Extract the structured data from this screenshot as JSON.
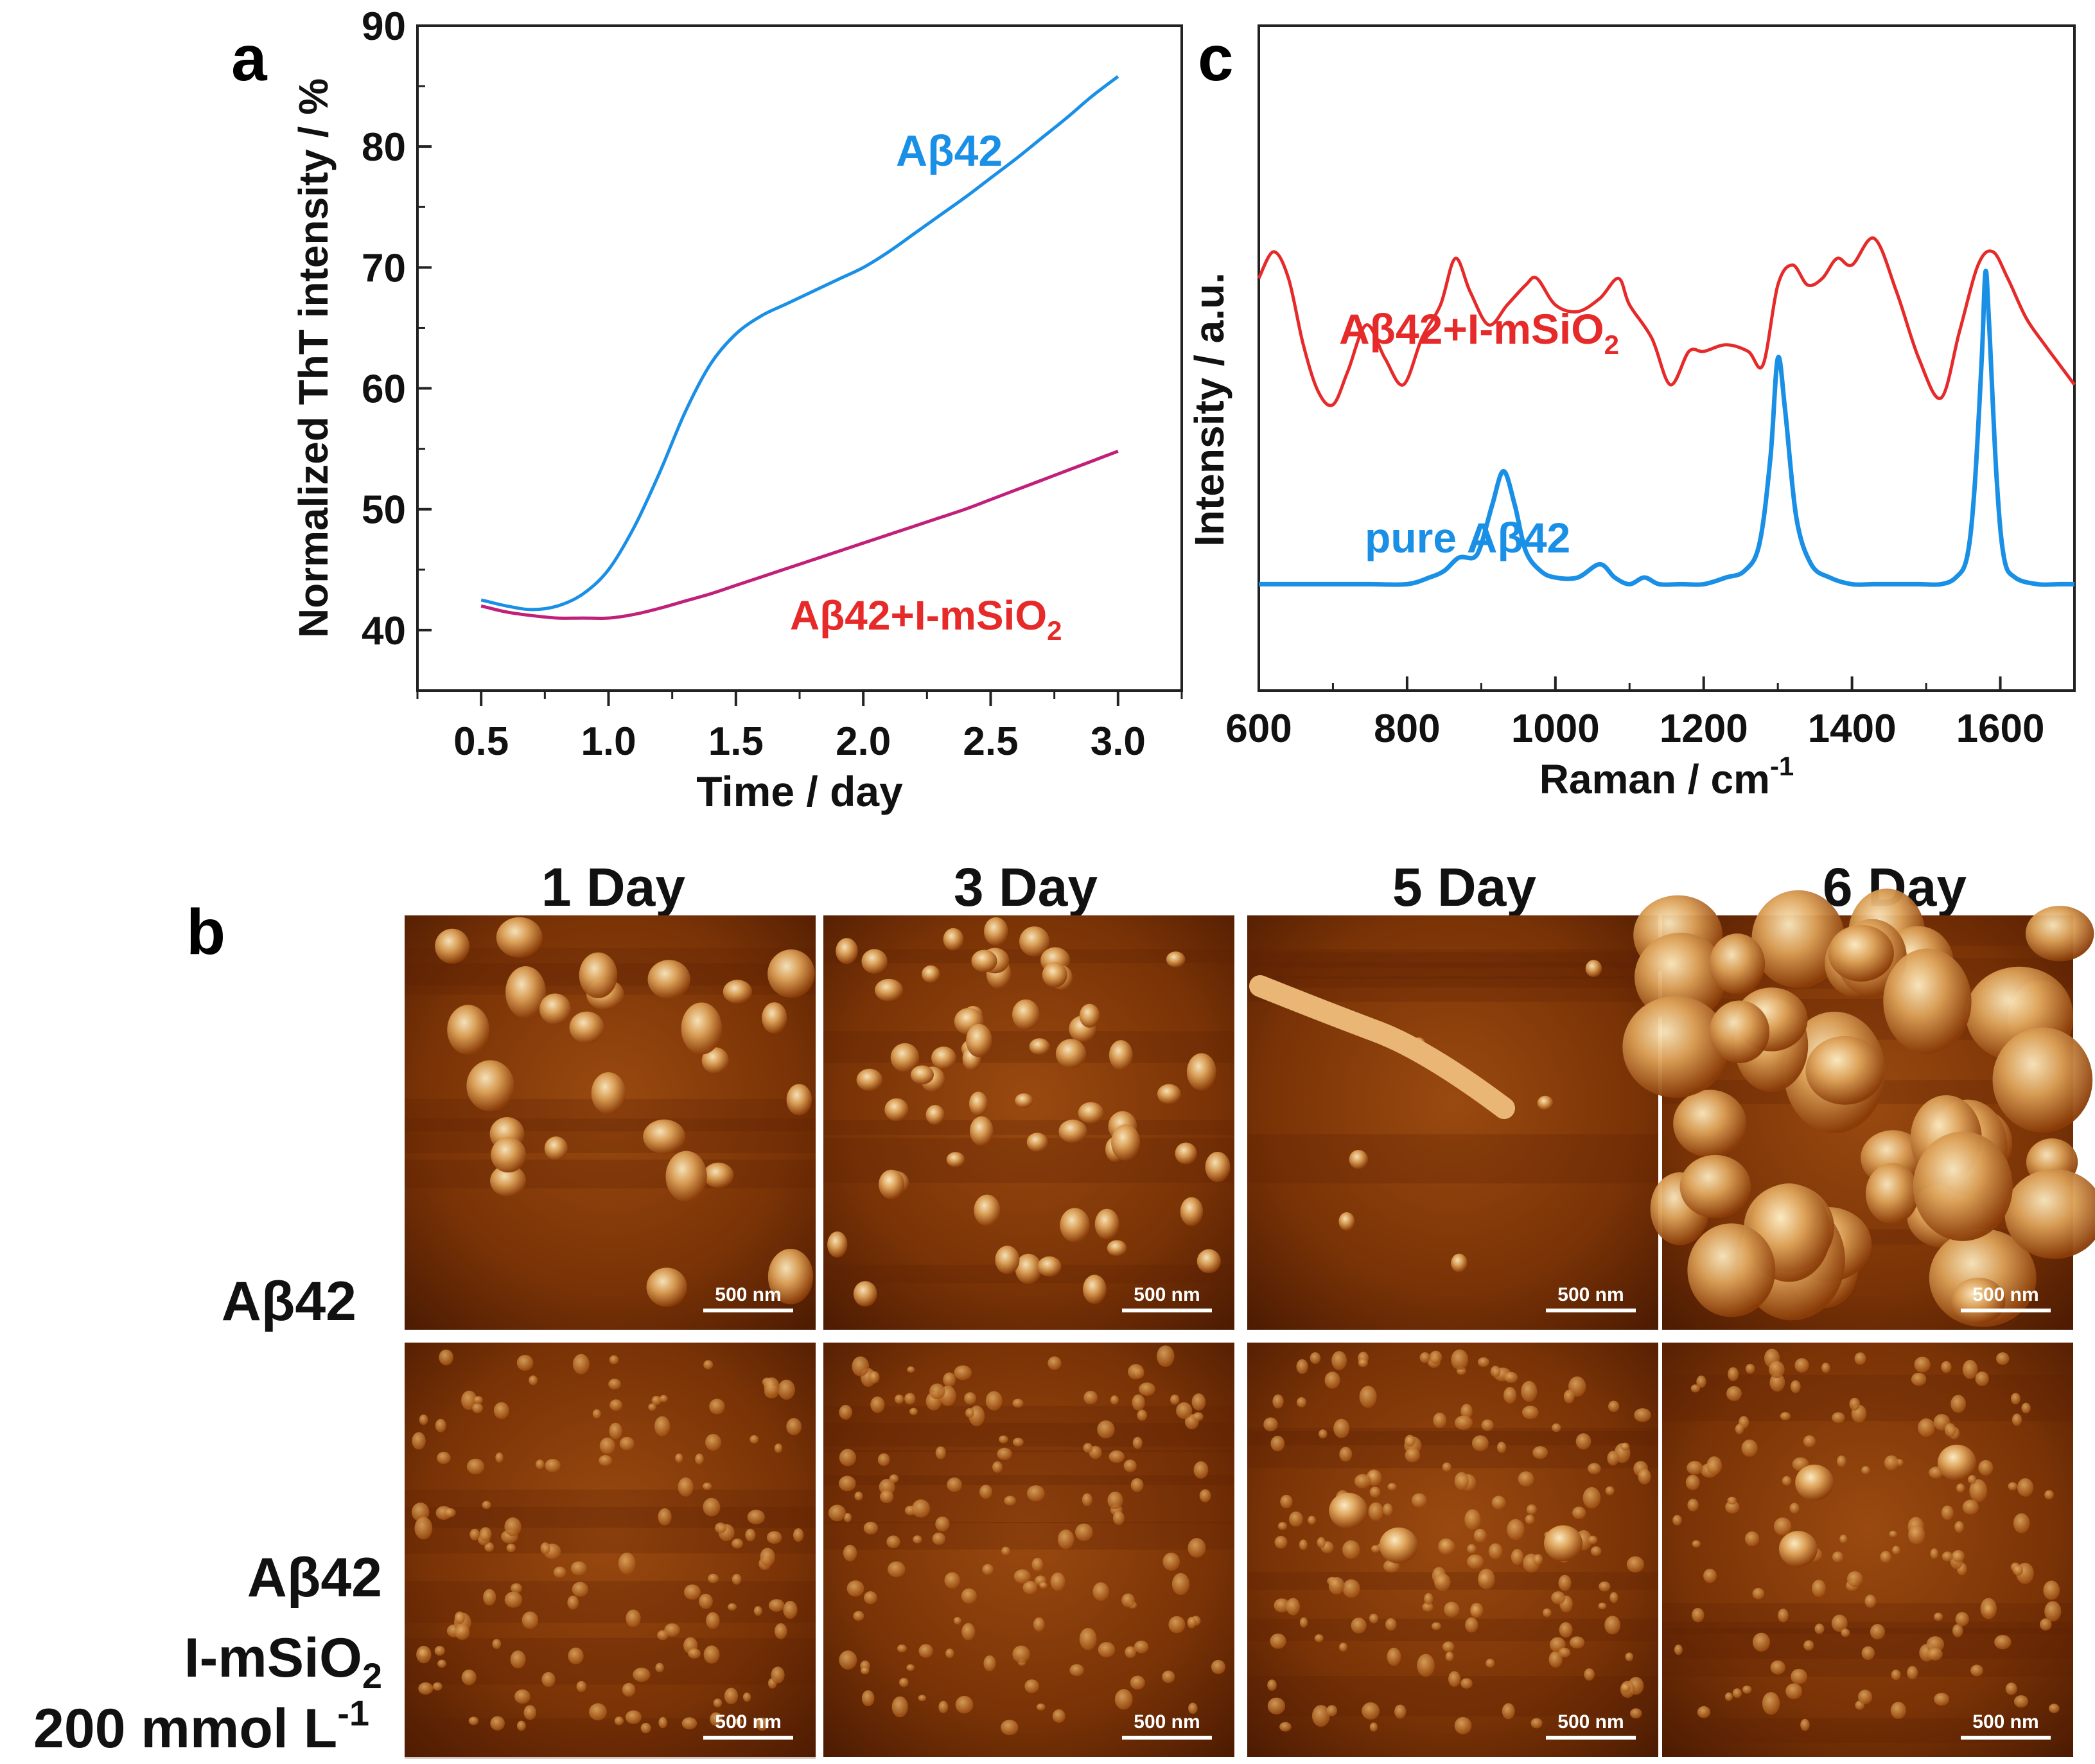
{
  "panel_labels": {
    "a": "a",
    "b": "b",
    "c": "c"
  },
  "colors": {
    "blue": "#1a8fe6",
    "red": "#e62a2a",
    "magenta": "#c0207a",
    "axis": "#222222",
    "afm_dark": "#3a1200",
    "afm_mid": "#8a3c08",
    "afm_light": "#f4d9a0"
  },
  "chart_data": [
    {
      "id": "panel-a",
      "type": "line",
      "title": "",
      "xlabel": "Time / day",
      "ylabel": "Normalized ThT intensity / %",
      "xlim": [
        0.25,
        3.25
      ],
      "ylim": [
        35,
        90
      ],
      "xticks": [
        0.5,
        1.0,
        1.5,
        2.0,
        2.5,
        3.0
      ],
      "xtick_labels": [
        "0.5",
        "1.0",
        "1.5",
        "2.0",
        "2.5",
        "3.0"
      ],
      "yticks": [
        40,
        50,
        60,
        70,
        80,
        90
      ],
      "ytick_labels": [
        "40",
        "50",
        "60",
        "70",
        "80",
        "90"
      ],
      "series": [
        {
          "name": "Aβ42",
          "color": "#1a8fe6",
          "x": [
            0.5,
            0.6,
            0.7,
            0.8,
            0.9,
            1.0,
            1.1,
            1.2,
            1.3,
            1.4,
            1.5,
            1.6,
            1.7,
            1.8,
            1.9,
            2.0,
            2.1,
            2.2,
            2.3,
            2.4,
            2.5,
            2.6,
            2.7,
            2.8,
            2.9,
            3.0
          ],
          "y": [
            42.5,
            42.0,
            41.7,
            42.0,
            43.0,
            45.0,
            48.5,
            53.0,
            58.0,
            62.0,
            64.5,
            66.0,
            67.0,
            68.0,
            69.0,
            70.0,
            71.3,
            72.8,
            74.3,
            75.8,
            77.4,
            79.0,
            80.7,
            82.4,
            84.2,
            85.8
          ]
        },
        {
          "name": "Aβ42+I-mSiO2",
          "color": "#c0207a",
          "x": [
            0.5,
            0.6,
            0.7,
            0.8,
            0.9,
            1.0,
            1.1,
            1.2,
            1.3,
            1.4,
            1.5,
            1.6,
            1.7,
            1.8,
            1.9,
            2.0,
            2.1,
            2.2,
            2.3,
            2.4,
            2.5,
            2.6,
            2.7,
            2.8,
            2.9,
            3.0
          ],
          "y": [
            42.0,
            41.5,
            41.2,
            41.0,
            41.0,
            41.0,
            41.3,
            41.8,
            42.4,
            43.0,
            43.7,
            44.4,
            45.1,
            45.8,
            46.5,
            47.2,
            47.9,
            48.6,
            49.3,
            50.0,
            50.8,
            51.6,
            52.4,
            53.2,
            54.0,
            54.8
          ]
        }
      ],
      "annotations": [
        {
          "text": "Aβ42",
          "color": "#1a8fe6"
        },
        {
          "text": "Aβ42+I-mSiO",
          "subscript": "2",
          "color": "#e62a2a"
        }
      ]
    },
    {
      "id": "panel-c",
      "type": "line",
      "title": "",
      "xlabel": "Raman / cm",
      "xlabel_sup": "-1",
      "ylabel": "Intensity / a.u.",
      "xlim": [
        600,
        1700
      ],
      "ylim": [
        0,
        1
      ],
      "xticks": [
        600,
        800,
        1000,
        1200,
        1400,
        1600
      ],
      "xtick_labels": [
        "600",
        "800",
        "1000",
        "1200",
        "1400",
        "1600"
      ],
      "series": [
        {
          "name": "Aβ42+I-mSiO2",
          "color": "#e62a2a",
          "x": [
            600,
            620,
            640,
            660,
            680,
            700,
            720,
            745,
            770,
            795,
            820,
            845,
            865,
            885,
            910,
            935,
            960,
            975,
            1000,
            1030,
            1060,
            1085,
            1100,
            1130,
            1155,
            1180,
            1200,
            1230,
            1260,
            1280,
            1300,
            1320,
            1340,
            1360,
            1380,
            1400,
            1430,
            1460,
            1490,
            1520,
            1545,
            1570,
            1590,
            1610,
            1635,
            1660,
            1680,
            1700
          ],
          "y": [
            0.62,
            0.66,
            0.62,
            0.52,
            0.45,
            0.43,
            0.48,
            0.55,
            0.5,
            0.46,
            0.53,
            0.58,
            0.65,
            0.6,
            0.55,
            0.58,
            0.61,
            0.62,
            0.58,
            0.57,
            0.59,
            0.62,
            0.58,
            0.53,
            0.46,
            0.51,
            0.51,
            0.52,
            0.51,
            0.49,
            0.61,
            0.64,
            0.61,
            0.62,
            0.65,
            0.64,
            0.68,
            0.6,
            0.5,
            0.44,
            0.54,
            0.64,
            0.66,
            0.62,
            0.56,
            0.52,
            0.49,
            0.46
          ]
        },
        {
          "name": "pure Aβ42",
          "color": "#1a8fe6",
          "x": [
            600,
            650,
            700,
            750,
            800,
            830,
            850,
            870,
            890,
            900,
            915,
            930,
            945,
            960,
            980,
            1000,
            1030,
            1060,
            1080,
            1100,
            1120,
            1140,
            1170,
            1200,
            1230,
            1255,
            1275,
            1290,
            1300,
            1310,
            1325,
            1345,
            1370,
            1400,
            1430,
            1460,
            1490,
            1520,
            1540,
            1555,
            1565,
            1575,
            1580,
            1585,
            1595,
            1605,
            1620,
            1650,
            1680,
            1700
          ],
          "y": [
            0.16,
            0.16,
            0.16,
            0.16,
            0.16,
            0.17,
            0.18,
            0.2,
            0.2,
            0.22,
            0.28,
            0.33,
            0.28,
            0.21,
            0.18,
            0.17,
            0.17,
            0.19,
            0.17,
            0.16,
            0.17,
            0.16,
            0.16,
            0.16,
            0.17,
            0.18,
            0.22,
            0.35,
            0.5,
            0.42,
            0.26,
            0.19,
            0.17,
            0.16,
            0.16,
            0.16,
            0.16,
            0.16,
            0.17,
            0.2,
            0.3,
            0.5,
            0.63,
            0.55,
            0.32,
            0.2,
            0.17,
            0.16,
            0.16,
            0.16
          ]
        }
      ],
      "annotations": [
        {
          "text": "Aβ42+I-mSiO",
          "subscript": "2",
          "color": "#e62a2a"
        },
        {
          "text": "pure Aβ42",
          "color": "#1a8fe6"
        }
      ]
    }
  ],
  "panel_b": {
    "column_headers": [
      "1 Day",
      "3 Day",
      "5 Day",
      "6 Day"
    ],
    "row_label_1": "Aβ42",
    "row_label_2_line1": "Aβ42",
    "row_label_2_line2": "I-mSiO",
    "row_label_2_line2_sub": "2",
    "row_label_2_line3": "200 mmol L",
    "row_label_2_line3_sup": "-1",
    "scale_bar_label": "500 nm"
  }
}
